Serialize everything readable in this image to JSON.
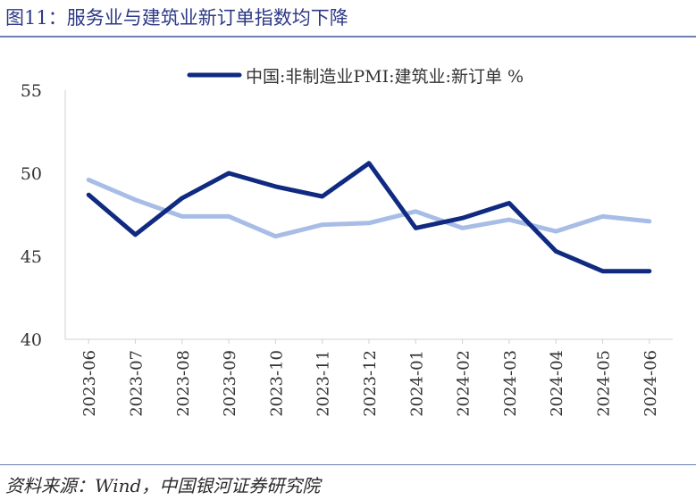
{
  "title": "图11：服务业与建筑业新订单指数均下降",
  "source": "资料来源：Wind，中国银河证券研究院",
  "colors": {
    "accent": "#2e3a84",
    "series_dark": "#0f2a80",
    "series_light": "#a8bde6"
  },
  "chart_data": {
    "type": "line",
    "x": [
      "2023-06",
      "2023-07",
      "2023-08",
      "2023-09",
      "2023-10",
      "2023-11",
      "2023-12",
      "2024-01",
      "2024-02",
      "2024-03",
      "2024-04",
      "2024-05",
      "2024-06"
    ],
    "ylim": [
      40,
      55
    ],
    "yticks": [
      40,
      45,
      50,
      55
    ],
    "grid": false,
    "legend_position": "top",
    "series": [
      {
        "name": "中国:非制造业PMI:建筑业:新订单 %",
        "color": "#0f2a80",
        "values": [
          48.7,
          46.3,
          48.5,
          50.0,
          49.2,
          48.6,
          50.6,
          46.7,
          47.3,
          48.2,
          45.3,
          44.1,
          44.1
        ]
      },
      {
        "name": "",
        "color": "#a8bde6",
        "values": [
          49.6,
          48.4,
          47.4,
          47.4,
          46.2,
          46.9,
          47.0,
          47.7,
          46.7,
          47.2,
          46.5,
          47.4,
          47.1
        ]
      }
    ]
  }
}
